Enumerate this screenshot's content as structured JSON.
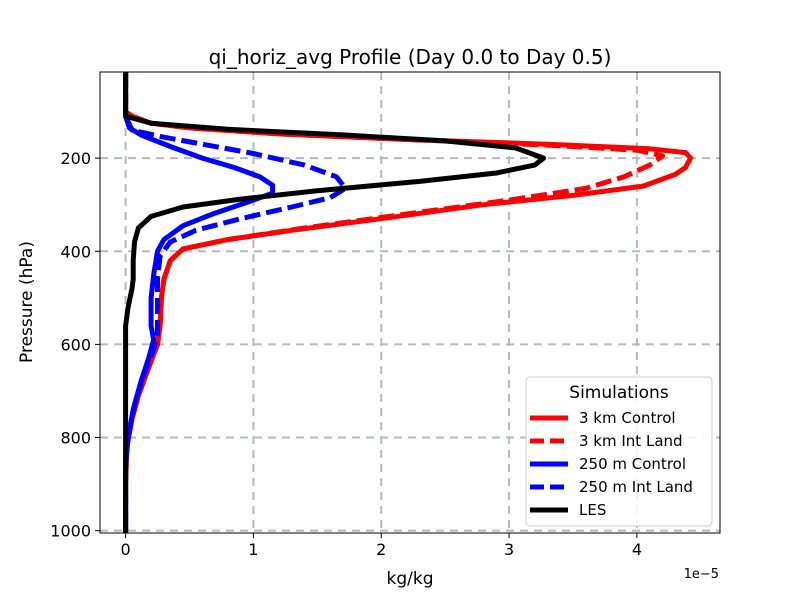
{
  "chart_data": {
    "type": "line",
    "title": "qi_horiz_avg Profile (Day 0.0 to Day 0.5)",
    "xlabel": "kg/kg",
    "ylabel": "Pressure (hPa)",
    "x_offset_text": "1e−5",
    "xlim": [
      -0.2,
      4.65
    ],
    "ylim": [
      1005,
      15
    ],
    "x_ticks": [
      0,
      1,
      2,
      3,
      4
    ],
    "x_tick_labels": [
      "0",
      "1",
      "2",
      "3",
      "4"
    ],
    "y_ticks": [
      200,
      400,
      600,
      800,
      1000
    ],
    "y_tick_labels": [
      "200",
      "400",
      "600",
      "800",
      "1000"
    ],
    "grid": true,
    "legend": {
      "title": "Simulations",
      "placement": "bottom-right"
    },
    "series": [
      {
        "name": "3 km Control",
        "color": "#ff0000",
        "dash": "solid",
        "points": [
          [
            0,
            15
          ],
          [
            0,
            100
          ],
          [
            0.05,
            110
          ],
          [
            0.2,
            125
          ],
          [
            0.5,
            135
          ],
          [
            1.2,
            148
          ],
          [
            2.2,
            160
          ],
          [
            3.3,
            170
          ],
          [
            4.1,
            180
          ],
          [
            4.38,
            188
          ],
          [
            4.42,
            200
          ],
          [
            4.38,
            220
          ],
          [
            4.3,
            235
          ],
          [
            4.05,
            260
          ],
          [
            3.5,
            280
          ],
          [
            2.8,
            300
          ],
          [
            2.0,
            330
          ],
          [
            1.3,
            355
          ],
          [
            0.8,
            375
          ],
          [
            0.45,
            395
          ],
          [
            0.35,
            420
          ],
          [
            0.3,
            460
          ],
          [
            0.28,
            500
          ],
          [
            0.27,
            560
          ],
          [
            0.25,
            600
          ],
          [
            0.18,
            650
          ],
          [
            0.1,
            710
          ],
          [
            0.05,
            760
          ],
          [
            0.01,
            820
          ],
          [
            0,
            900
          ],
          [
            0,
            1005
          ]
        ]
      },
      {
        "name": "3 km Int Land",
        "color": "#ff0000",
        "dash": "dashed",
        "points": [
          [
            0,
            15
          ],
          [
            0,
            100
          ],
          [
            0.05,
            110
          ],
          [
            0.2,
            125
          ],
          [
            0.5,
            135
          ],
          [
            1.2,
            148
          ],
          [
            2.2,
            160
          ],
          [
            3.3,
            172
          ],
          [
            4.0,
            183
          ],
          [
            4.2,
            195
          ],
          [
            4.1,
            215
          ],
          [
            3.9,
            240
          ],
          [
            3.6,
            265
          ],
          [
            3.0,
            290
          ],
          [
            2.2,
            320
          ],
          [
            1.4,
            350
          ],
          [
            0.8,
            375
          ],
          [
            0.45,
            395
          ],
          [
            0.35,
            420
          ],
          [
            0.3,
            460
          ],
          [
            0.28,
            500
          ],
          [
            0.27,
            560
          ],
          [
            0.25,
            600
          ],
          [
            0.18,
            650
          ],
          [
            0.1,
            710
          ],
          [
            0.05,
            760
          ],
          [
            0.01,
            820
          ],
          [
            0,
            900
          ],
          [
            0,
            1005
          ]
        ]
      },
      {
        "name": "250 m Control",
        "color": "#0000ff",
        "dash": "solid",
        "points": [
          [
            0,
            15
          ],
          [
            0,
            110
          ],
          [
            0.03,
            135
          ],
          [
            0.12,
            150
          ],
          [
            0.35,
            175
          ],
          [
            0.6,
            200
          ],
          [
            0.85,
            220
          ],
          [
            1.05,
            240
          ],
          [
            1.15,
            258
          ],
          [
            1.15,
            275
          ],
          [
            0.95,
            295
          ],
          [
            0.7,
            318
          ],
          [
            0.45,
            345
          ],
          [
            0.3,
            375
          ],
          [
            0.25,
            400
          ],
          [
            0.22,
            450
          ],
          [
            0.2,
            500
          ],
          [
            0.2,
            560
          ],
          [
            0.22,
            590
          ],
          [
            0.18,
            630
          ],
          [
            0.12,
            680
          ],
          [
            0.06,
            740
          ],
          [
            0.02,
            800
          ],
          [
            0,
            860
          ],
          [
            0,
            1005
          ]
        ]
      },
      {
        "name": "250 m Int Land",
        "color": "#0000ff",
        "dash": "dashed",
        "points": [
          [
            0,
            15
          ],
          [
            0,
            110
          ],
          [
            0.05,
            140
          ],
          [
            0.3,
            155
          ],
          [
            0.6,
            170
          ],
          [
            1.0,
            190
          ],
          [
            1.4,
            215
          ],
          [
            1.65,
            240
          ],
          [
            1.72,
            265
          ],
          [
            1.6,
            285
          ],
          [
            1.3,
            305
          ],
          [
            0.9,
            330
          ],
          [
            0.55,
            355
          ],
          [
            0.35,
            380
          ],
          [
            0.27,
            410
          ],
          [
            0.25,
            460
          ],
          [
            0.25,
            520
          ],
          [
            0.25,
            580
          ],
          [
            0.22,
            610
          ],
          [
            0.15,
            660
          ],
          [
            0.08,
            720
          ],
          [
            0.03,
            780
          ],
          [
            0,
            840
          ],
          [
            0,
            1005
          ]
        ]
      },
      {
        "name": "LES",
        "color": "#000000",
        "dash": "solid",
        "points": [
          [
            0,
            15
          ],
          [
            0,
            110
          ],
          [
            0.2,
            125
          ],
          [
            0.8,
            138
          ],
          [
            1.7,
            150
          ],
          [
            2.5,
            163
          ],
          [
            3.05,
            178
          ],
          [
            3.27,
            200
          ],
          [
            3.2,
            215
          ],
          [
            2.9,
            232
          ],
          [
            2.3,
            250
          ],
          [
            1.5,
            270
          ],
          [
            0.9,
            288
          ],
          [
            0.45,
            305
          ],
          [
            0.2,
            325
          ],
          [
            0.1,
            350
          ],
          [
            0.07,
            380
          ],
          [
            0.06,
            420
          ],
          [
            0.06,
            460
          ],
          [
            0.05,
            480
          ],
          [
            0.02,
            520
          ],
          [
            0,
            560
          ],
          [
            0,
            1005
          ]
        ]
      }
    ]
  }
}
